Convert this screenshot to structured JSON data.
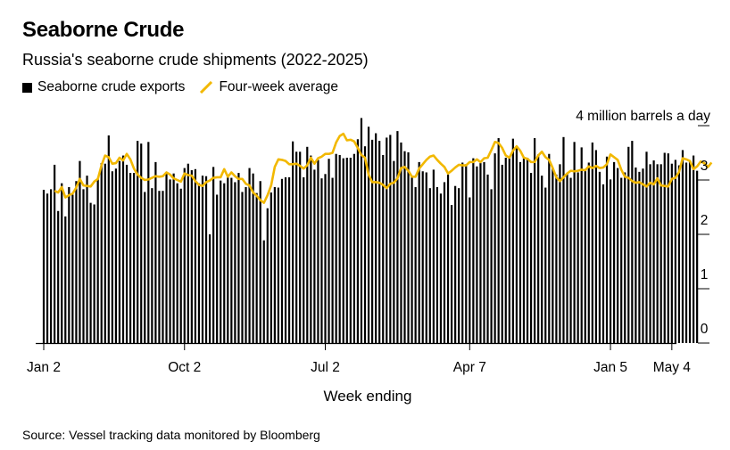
{
  "header": {
    "title": "Seaborne Crude",
    "subtitle": "Russia's seaborne crude shipments (2022-2025)"
  },
  "legend": {
    "bars_label": "Seaborne crude exports",
    "line_label": "Four-week average"
  },
  "source": "Source: Vessel tracking data monitored by Bloomberg",
  "colors": {
    "bars": "#000000",
    "line": "#f2b800",
    "axis": "#000000"
  },
  "chart_data": {
    "type": "bar",
    "title": "Seaborne Crude",
    "subtitle": "Russia's seaborne crude shipments (2022-2025)",
    "xlabel": "Week ending",
    "ylabel": "4 million barrels a day",
    "ylim": [
      0,
      4
    ],
    "y_ticks": [
      "0",
      "1",
      "2",
      "3"
    ],
    "y_unit_label": "4 million barrels a day",
    "x_tick_labels": [
      {
        "label": "Jan 2",
        "index": 0
      },
      {
        "label": "Oct 2",
        "index": 39
      },
      {
        "label": "Jul 2",
        "index": 78
      },
      {
        "label": "Apr 7",
        "index": 118
      },
      {
        "label": "Jan 5",
        "index": 157
      },
      {
        "label": "May 4",
        "index": 174
      }
    ],
    "grid": false,
    "legend_position": "top-left",
    "series": [
      {
        "name": "Seaborne crude exports",
        "type": "bar",
        "values": [
          2.82,
          2.75,
          2.83,
          3.28,
          2.43,
          2.94,
          2.33,
          2.87,
          2.73,
          2.98,
          3.35,
          2.83,
          3.08,
          2.58,
          2.55,
          3.04,
          3.31,
          3.3,
          3.82,
          3.16,
          3.21,
          3.35,
          3.45,
          3.28,
          3.13,
          3.13,
          3.72,
          3.67,
          2.78,
          3.7,
          2.85,
          3.33,
          2.8,
          2.8,
          3.11,
          3.01,
          3.12,
          2.94,
          2.84,
          3.22,
          3.3,
          3.18,
          3.2,
          2.94,
          3.08,
          3.07,
          2.0,
          3.24,
          2.73,
          2.99,
          2.94,
          3.1,
          3.04,
          2.96,
          3.13,
          2.78,
          2.87,
          3.22,
          3.12,
          2.76,
          2.98,
          1.89,
          2.48,
          2.77,
          2.87,
          2.86,
          3.02,
          3.05,
          3.05,
          3.71,
          3.52,
          3.52,
          3.05,
          3.61,
          3.45,
          3.19,
          3.37,
          3.03,
          3.11,
          3.39,
          3.04,
          3.48,
          3.46,
          3.4,
          3.41,
          3.41,
          3.48,
          3.75,
          4.14,
          3.62,
          3.98,
          3.74,
          3.86,
          3.72,
          3.46,
          3.78,
          3.83,
          3.35,
          3.9,
          3.69,
          3.53,
          3.51,
          3.06,
          2.87,
          3.33,
          3.16,
          3.14,
          2.85,
          3.19,
          2.87,
          2.75,
          2.96,
          3.1,
          2.54,
          2.89,
          2.85,
          3.32,
          3.29,
          2.68,
          3.4,
          3.25,
          3.31,
          3.33,
          3.1,
          2.83,
          3.49,
          3.77,
          3.28,
          3.41,
          3.41,
          3.76,
          3.6,
          3.33,
          3.4,
          3.41,
          3.13,
          3.77,
          3.47,
          3.08,
          2.86,
          3.48,
          3.23,
          3.1,
          3.29,
          3.79,
          3.11,
          3.04,
          3.7,
          3.14,
          3.6,
          3.19,
          3.32,
          3.69,
          3.55,
          3.15,
          2.92,
          3.43,
          3.01,
          3.33,
          3.22,
          3.04,
          3.14,
          3.61,
          3.72,
          3.23,
          3.15,
          3.21,
          3.52,
          3.29,
          3.36,
          3.29,
          3.29,
          3.5,
          3.49,
          3.3,
          3.37,
          3.27,
          3.55,
          3.32,
          3.34,
          3.45,
          3.17
        ]
      },
      {
        "name": "Four-week average",
        "type": "line",
        "start_index": 3,
        "values": [
          2.8,
          2.77,
          2.87,
          2.68,
          2.72,
          2.75,
          2.86,
          3.02,
          2.9,
          2.89,
          2.88,
          2.97,
          3.02,
          3.27,
          3.45,
          3.42,
          3.3,
          3.31,
          3.41,
          3.36,
          3.48,
          3.38,
          3.21,
          3.1,
          3.04,
          3.0,
          3.01,
          3.04,
          3.07,
          3.06,
          3.07,
          3.14,
          3.1,
          3.03,
          3.0,
          2.97,
          3.12,
          3.09,
          3.08,
          2.98,
          2.91,
          2.89,
          2.96,
          2.99,
          3.04,
          3.05,
          3.05,
          3.2,
          3.06,
          3.14,
          3.07,
          3.02,
          3.02,
          2.93,
          2.9,
          2.77,
          2.71,
          2.63,
          2.58,
          2.72,
          2.9,
          3.24,
          3.38,
          3.37,
          3.35,
          3.29,
          3.29,
          3.3,
          3.26,
          3.21,
          3.27,
          3.41,
          3.3,
          3.4,
          3.43,
          3.48,
          3.48,
          3.5,
          3.69,
          3.81,
          3.85,
          3.73,
          3.74,
          3.71,
          3.59,
          3.46,
          3.41,
          3.1,
          2.96,
          2.96,
          2.95,
          2.91,
          2.85,
          2.93,
          2.95,
          3.03,
          3.22,
          3.24,
          3.17,
          3.06,
          3.06,
          3.21,
          3.29,
          3.37,
          3.43,
          3.45,
          3.37,
          3.3,
          3.24,
          3.12,
          3.17,
          3.23,
          3.28,
          3.27,
          3.27,
          3.33,
          3.33,
          3.38,
          3.33,
          3.4,
          3.41,
          3.55,
          3.7,
          3.68,
          3.59,
          3.45,
          3.41,
          3.54,
          3.62,
          3.54,
          3.41,
          3.39,
          3.33,
          3.33,
          3.45,
          3.52,
          3.42,
          3.37,
          3.22,
          3.05,
          2.98,
          3.05,
          3.12,
          3.17,
          3.16,
          3.17,
          3.19,
          3.18,
          3.25,
          3.22,
          3.26,
          3.22,
          3.23,
          3.29,
          3.47,
          3.42,
          3.37,
          3.19,
          3.06,
          3.04,
          2.98,
          2.95,
          2.96,
          2.92,
          2.88,
          2.95,
          2.92,
          3.03,
          2.9,
          2.89,
          2.88,
          3.02,
          3.04,
          3.15,
          3.4,
          3.38,
          3.35,
          3.2,
          3.25,
          3.34,
          3.31,
          3.24,
          3.32
        ]
      }
    ]
  }
}
